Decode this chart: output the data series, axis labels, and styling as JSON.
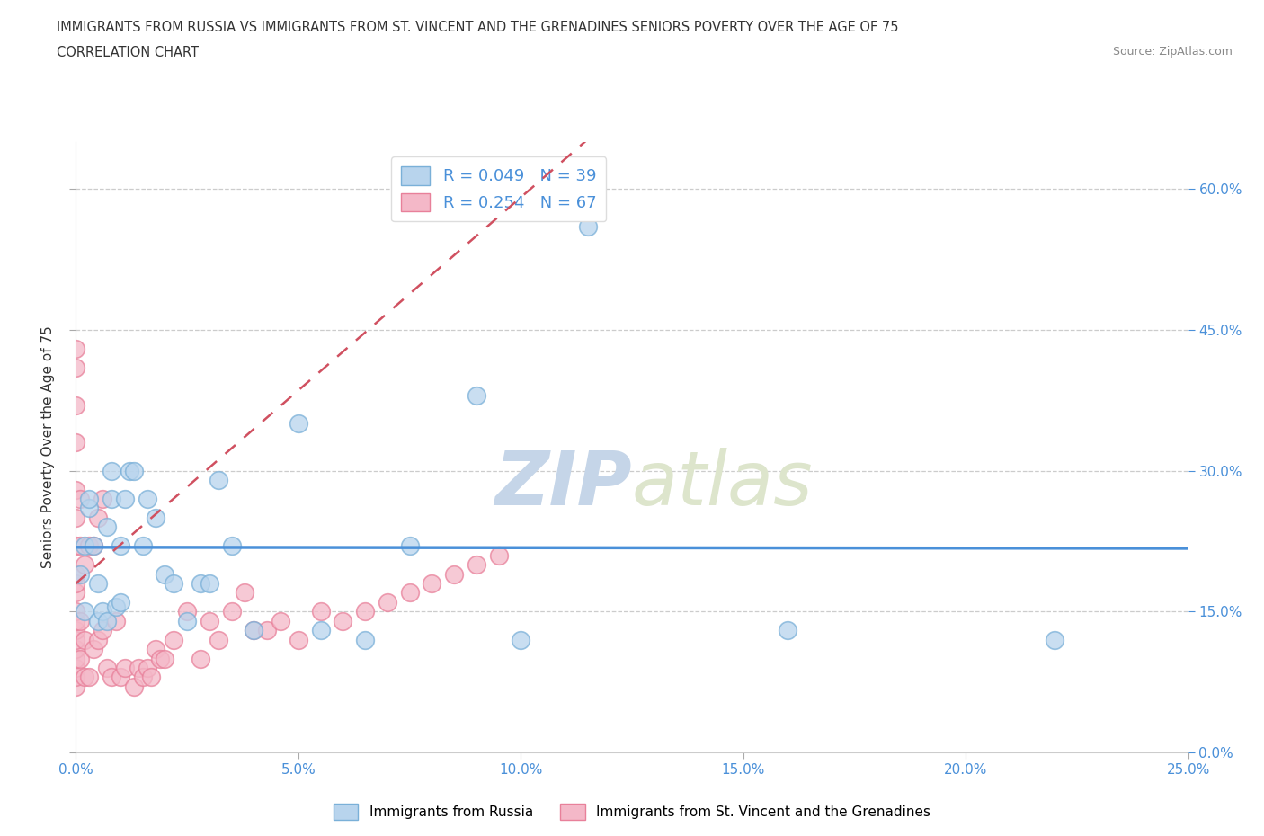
{
  "title_line1": "IMMIGRANTS FROM RUSSIA VS IMMIGRANTS FROM ST. VINCENT AND THE GRENADINES SENIORS POVERTY OVER THE AGE OF 75",
  "title_line2": "CORRELATION CHART",
  "source_text": "Source: ZipAtlas.com",
  "ylabel": "Seniors Poverty Over the Age of 75",
  "xlim": [
    0.0,
    0.25
  ],
  "ylim": [
    0.0,
    0.65
  ],
  "xticks": [
    0.0,
    0.05,
    0.1,
    0.15,
    0.2,
    0.25
  ],
  "xtick_labels": [
    "0.0%",
    "5.0%",
    "10.0%",
    "15.0%",
    "20.0%",
    "25.0%"
  ],
  "ytick_labels_right": [
    "0.0%",
    "15.0%",
    "30.0%",
    "45.0%",
    "60.0%"
  ],
  "yticks_right": [
    0.0,
    0.15,
    0.3,
    0.45,
    0.6
  ],
  "russia_R": 0.049,
  "russia_N": 39,
  "vincent_R": 0.254,
  "vincent_N": 67,
  "russia_fill_color": "#b8d4ed",
  "russia_edge_color": "#7ab0d8",
  "vincent_fill_color": "#f4b8c8",
  "vincent_edge_color": "#e8809a",
  "russia_line_color": "#4a90d9",
  "vincent_line_color": "#d05060",
  "axis_label_color": "#4a90d9",
  "watermark_text": "ZIPatlas",
  "watermark_color": "#ccd8ea",
  "legend_label_russia": "Immigrants from Russia",
  "legend_label_vincent": "Immigrants from St. Vincent and the Grenadines",
  "russia_scatter_x": [
    0.001,
    0.002,
    0.002,
    0.003,
    0.003,
    0.004,
    0.005,
    0.005,
    0.006,
    0.007,
    0.007,
    0.008,
    0.008,
    0.009,
    0.01,
    0.01,
    0.011,
    0.012,
    0.013,
    0.015,
    0.016,
    0.018,
    0.02,
    0.022,
    0.025,
    0.028,
    0.03,
    0.032,
    0.035,
    0.04,
    0.05,
    0.055,
    0.065,
    0.075,
    0.09,
    0.1,
    0.115,
    0.16,
    0.22
  ],
  "russia_scatter_y": [
    0.19,
    0.22,
    0.15,
    0.26,
    0.27,
    0.22,
    0.14,
    0.18,
    0.15,
    0.14,
    0.24,
    0.27,
    0.3,
    0.155,
    0.16,
    0.22,
    0.27,
    0.3,
    0.3,
    0.22,
    0.27,
    0.25,
    0.19,
    0.18,
    0.14,
    0.18,
    0.18,
    0.29,
    0.22,
    0.13,
    0.35,
    0.13,
    0.12,
    0.22,
    0.38,
    0.12,
    0.56,
    0.13,
    0.12
  ],
  "vincent_scatter_x": [
    0.0,
    0.0,
    0.0,
    0.0,
    0.0,
    0.0,
    0.0,
    0.0,
    0.0,
    0.0,
    0.0,
    0.0,
    0.0,
    0.0,
    0.0,
    0.0,
    0.0,
    0.0,
    0.0,
    0.001,
    0.001,
    0.001,
    0.001,
    0.002,
    0.002,
    0.002,
    0.003,
    0.003,
    0.004,
    0.004,
    0.005,
    0.005,
    0.006,
    0.006,
    0.007,
    0.008,
    0.009,
    0.01,
    0.011,
    0.013,
    0.014,
    0.015,
    0.016,
    0.017,
    0.018,
    0.019,
    0.02,
    0.022,
    0.025,
    0.028,
    0.03,
    0.032,
    0.035,
    0.038,
    0.04,
    0.043,
    0.046,
    0.05,
    0.055,
    0.06,
    0.065,
    0.07,
    0.075,
    0.08,
    0.085,
    0.09,
    0.095
  ],
  "vincent_scatter_y": [
    0.07,
    0.08,
    0.09,
    0.1,
    0.11,
    0.12,
    0.13,
    0.14,
    0.15,
    0.17,
    0.18,
    0.19,
    0.22,
    0.25,
    0.28,
    0.33,
    0.37,
    0.41,
    0.43,
    0.1,
    0.14,
    0.22,
    0.27,
    0.08,
    0.12,
    0.2,
    0.08,
    0.22,
    0.11,
    0.22,
    0.12,
    0.25,
    0.13,
    0.27,
    0.09,
    0.08,
    0.14,
    0.08,
    0.09,
    0.07,
    0.09,
    0.08,
    0.09,
    0.08,
    0.11,
    0.1,
    0.1,
    0.12,
    0.15,
    0.1,
    0.14,
    0.12,
    0.15,
    0.17,
    0.13,
    0.13,
    0.14,
    0.12,
    0.15,
    0.14,
    0.15,
    0.16,
    0.17,
    0.18,
    0.19,
    0.2,
    0.21
  ]
}
